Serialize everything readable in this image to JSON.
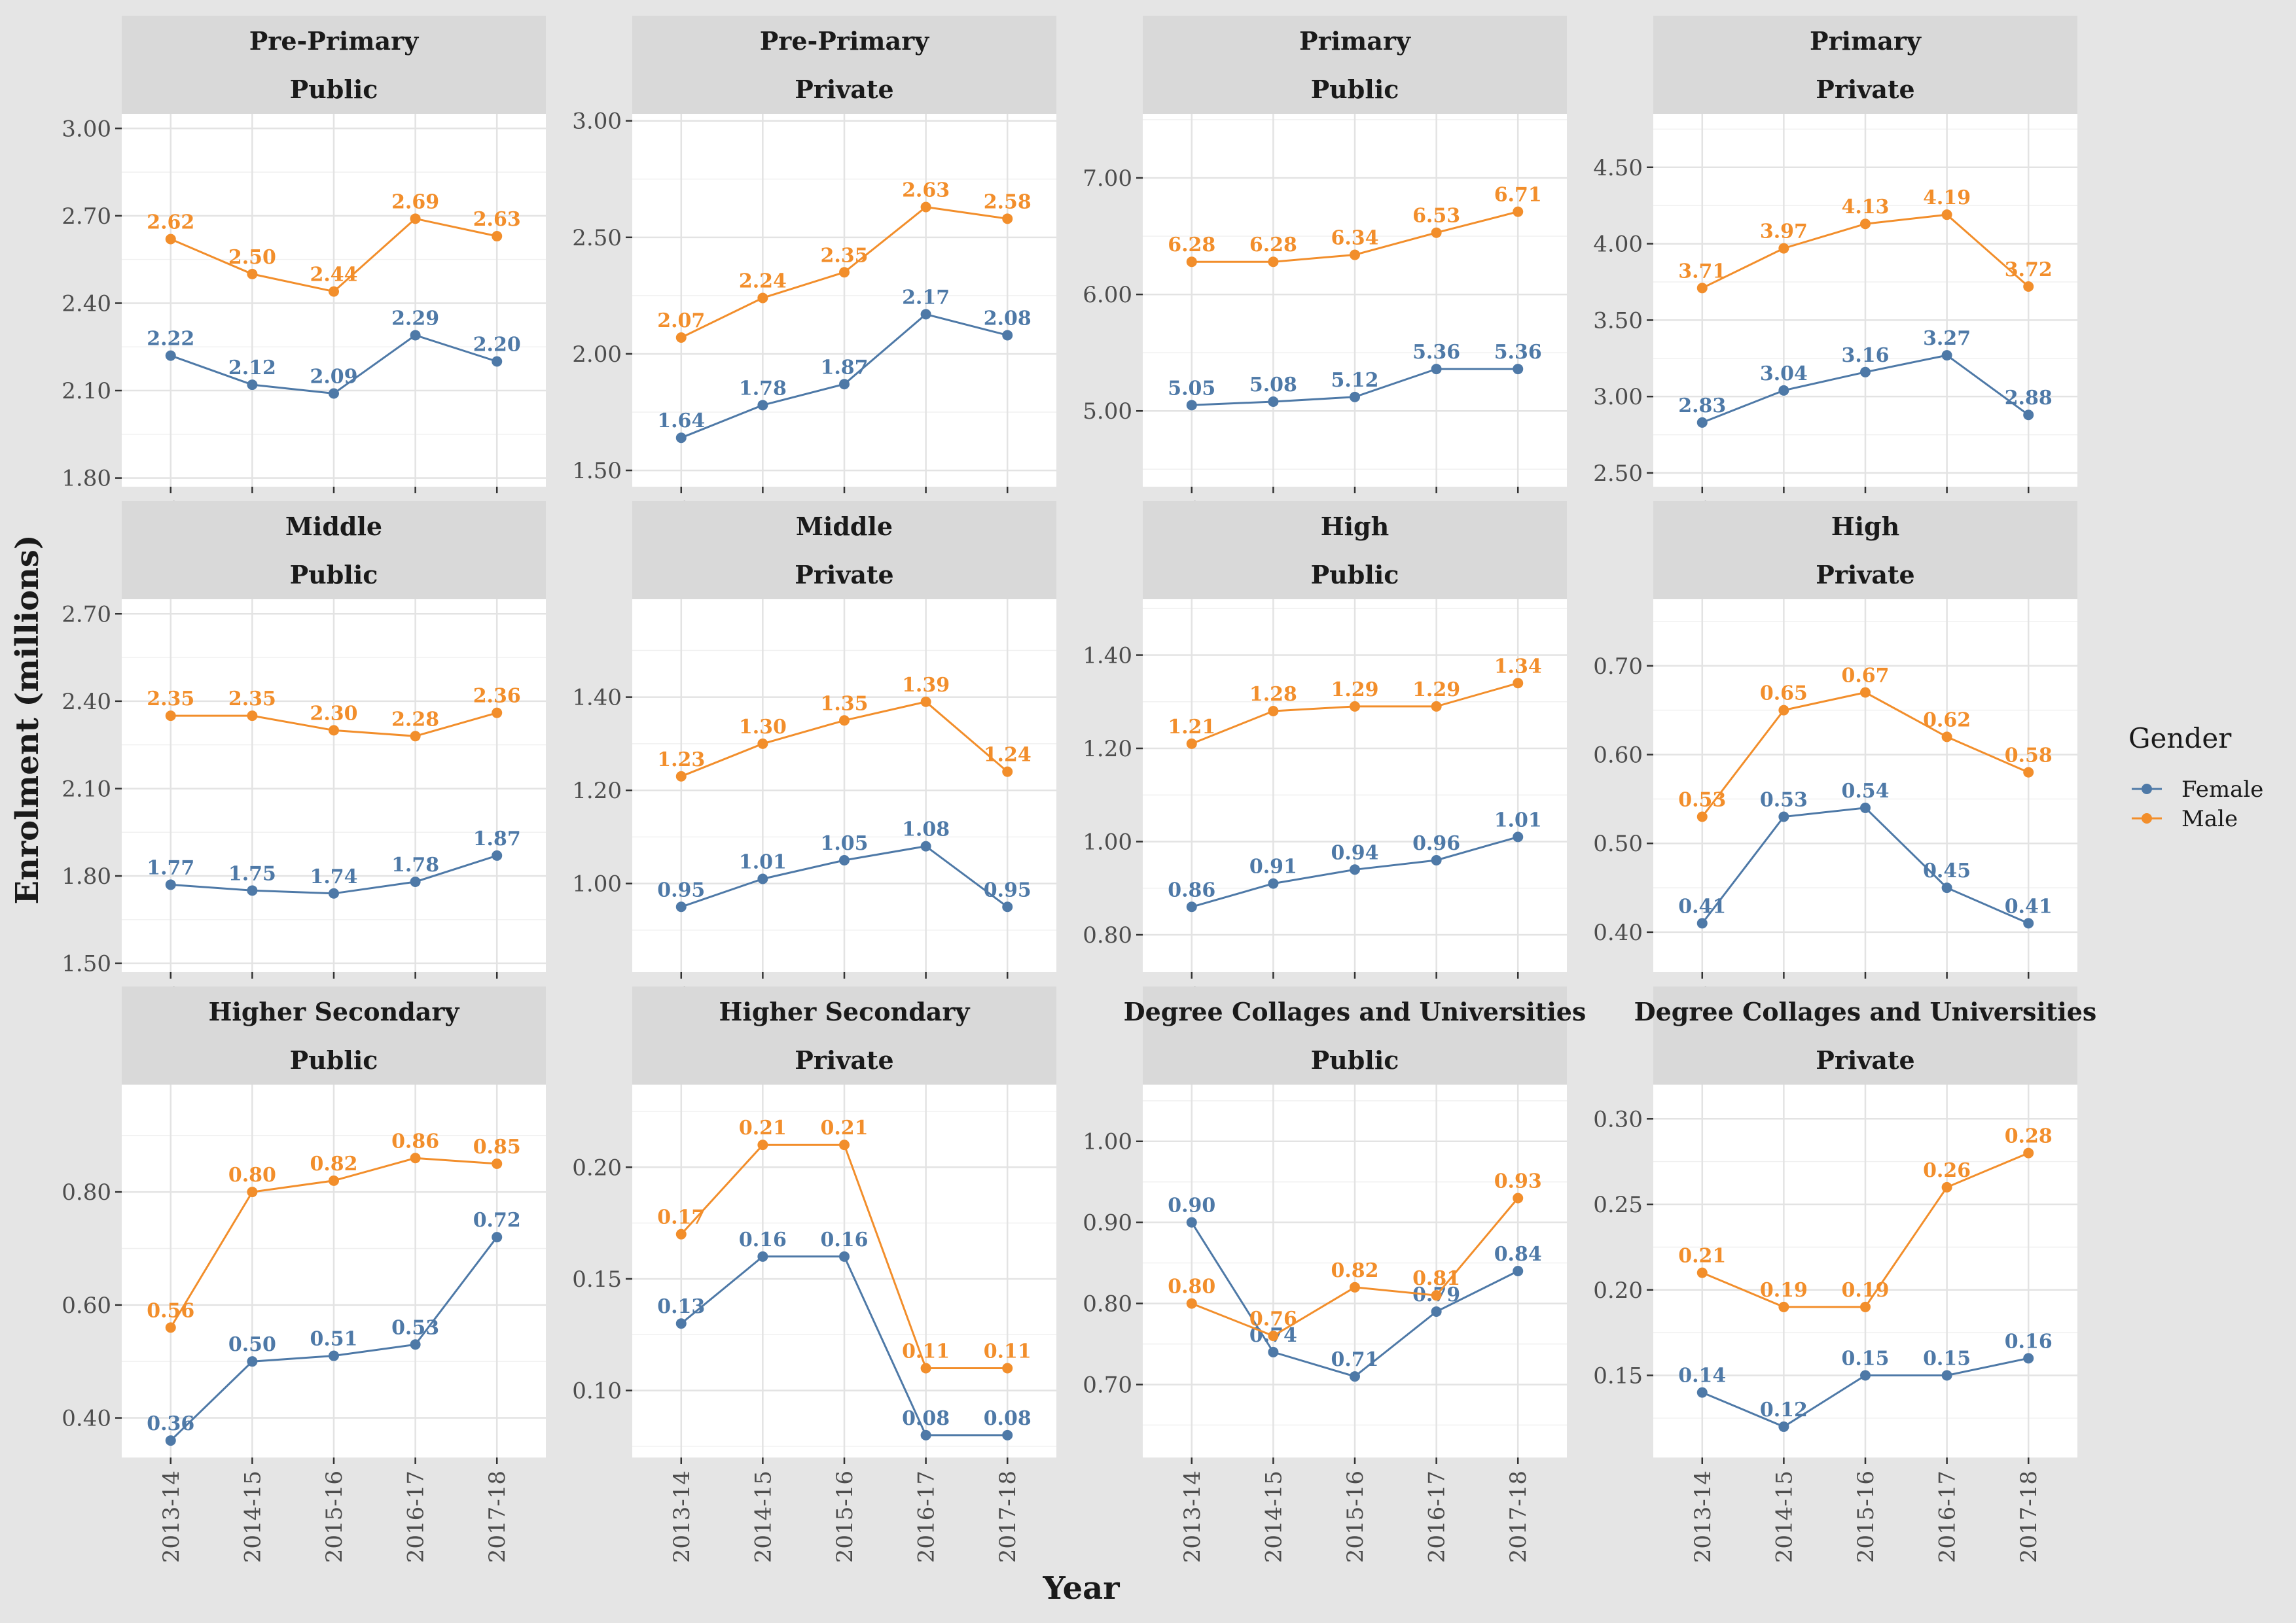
{
  "chart_data": {
    "type": "line",
    "xlabel": "Year",
    "ylabel": "Enrolment (millions)",
    "x": [
      "2013-14",
      "2014-15",
      "2015-16",
      "2016-17",
      "2017-18"
    ],
    "legend": {
      "title": "Gender",
      "placement": "right",
      "entries": [
        {
          "name": "Female",
          "color": "#4e79a7"
        },
        {
          "name": "Male",
          "color": "#f28e2b"
        }
      ]
    },
    "panels": [
      {
        "level": "Pre-Primary",
        "sector": "Public",
        "ylim": [
          1.77,
          3.05
        ],
        "yticks": [
          "1.80",
          "2.10",
          "2.40",
          "2.70",
          "3.00"
        ],
        "series": [
          {
            "name": "Female",
            "values": [
              2.22,
              2.12,
              2.09,
              2.29,
              2.2
            ],
            "labels": [
              "2.22",
              "2.12",
              "2.09",
              "2.29",
              "2.20"
            ]
          },
          {
            "name": "Male",
            "values": [
              2.62,
              2.5,
              2.44,
              2.69,
              2.63
            ],
            "labels": [
              "2.62",
              "2.50",
              "2.44",
              "2.69",
              "2.63"
            ]
          }
        ]
      },
      {
        "level": "Pre-Primary",
        "sector": "Private",
        "ylim": [
          1.43,
          3.03
        ],
        "yticks": [
          "1.50",
          "2.00",
          "2.50",
          "3.00"
        ],
        "series": [
          {
            "name": "Female",
            "values": [
              1.64,
              1.78,
              1.87,
              2.17,
              2.08
            ],
            "labels": [
              "1.64",
              "1.78",
              "1.87",
              "2.17",
              "2.08"
            ]
          },
          {
            "name": "Male",
            "values": [
              2.07,
              2.24,
              2.35,
              2.63,
              2.58
            ],
            "labels": [
              "2.07",
              "2.24",
              "2.35",
              "2.63",
              "2.58"
            ]
          }
        ]
      },
      {
        "level": "Primary",
        "sector": "Public",
        "ylim": [
          4.35,
          7.55
        ],
        "yticks": [
          "5.00",
          "6.00",
          "7.00"
        ],
        "series": [
          {
            "name": "Female",
            "values": [
              5.05,
              5.08,
              5.12,
              5.36,
              5.36
            ],
            "labels": [
              "5.05",
              "5.08",
              "5.12",
              "5.36",
              "5.36"
            ]
          },
          {
            "name": "Male",
            "values": [
              6.28,
              6.28,
              6.34,
              6.53,
              6.71
            ],
            "labels": [
              "6.28",
              "6.28",
              "6.34",
              "6.53",
              "6.71"
            ]
          }
        ]
      },
      {
        "level": "Primary",
        "sector": "Private",
        "ylim": [
          2.41,
          4.85
        ],
        "yticks": [
          "2.50",
          "3.00",
          "3.50",
          "4.00",
          "4.50"
        ],
        "series": [
          {
            "name": "Female",
            "values": [
              2.83,
              3.04,
              3.16,
              3.27,
              2.88
            ],
            "labels": [
              "2.83",
              "3.04",
              "3.16",
              "3.27",
              "2.88"
            ]
          },
          {
            "name": "Male",
            "values": [
              3.71,
              3.97,
              4.13,
              4.19,
              3.72
            ],
            "labels": [
              "3.71",
              "3.97",
              "4.13",
              "4.19",
              "3.72"
            ]
          }
        ]
      },
      {
        "level": "Middle",
        "sector": "Public",
        "ylim": [
          1.47,
          2.75
        ],
        "yticks": [
          "1.50",
          "1.80",
          "2.10",
          "2.40",
          "2.70"
        ],
        "series": [
          {
            "name": "Female",
            "values": [
              1.77,
              1.75,
              1.74,
              1.78,
              1.87
            ],
            "labels": [
              "1.77",
              "1.75",
              "1.74",
              "1.78",
              "1.87"
            ]
          },
          {
            "name": "Male",
            "values": [
              2.35,
              2.35,
              2.3,
              2.28,
              2.36
            ],
            "labels": [
              "2.35",
              "2.35",
              "2.30",
              "2.28",
              "2.36"
            ]
          }
        ]
      },
      {
        "level": "Middle",
        "sector": "Private",
        "ylim": [
          0.81,
          1.61
        ],
        "yticks": [
          "1.00",
          "1.20",
          "1.40"
        ],
        "series": [
          {
            "name": "Female",
            "values": [
              0.95,
              1.01,
              1.05,
              1.08,
              0.95
            ],
            "labels": [
              "0.95",
              "1.01",
              "1.05",
              "1.08",
              "0.95"
            ]
          },
          {
            "name": "Male",
            "values": [
              1.23,
              1.3,
              1.35,
              1.39,
              1.24
            ],
            "labels": [
              "1.23",
              "1.30",
              "1.35",
              "1.39",
              "1.24"
            ]
          }
        ]
      },
      {
        "level": "High",
        "sector": "Public",
        "ylim": [
          0.72,
          1.52
        ],
        "yticks": [
          "0.80",
          "1.00",
          "1.20",
          "1.40"
        ],
        "series": [
          {
            "name": "Female",
            "values": [
              0.86,
              0.91,
              0.94,
              0.96,
              1.01
            ],
            "labels": [
              "0.86",
              "0.91",
              "0.94",
              "0.96",
              "1.01"
            ]
          },
          {
            "name": "Male",
            "values": [
              1.21,
              1.28,
              1.29,
              1.29,
              1.34
            ],
            "labels": [
              "1.21",
              "1.28",
              "1.29",
              "1.29",
              "1.34"
            ]
          }
        ]
      },
      {
        "level": "High",
        "sector": "Private",
        "ylim": [
          0.355,
          0.775
        ],
        "yticks": [
          "0.40",
          "0.50",
          "0.60",
          "0.70"
        ],
        "series": [
          {
            "name": "Female",
            "values": [
              0.41,
              0.53,
              0.54,
              0.45,
              0.41
            ],
            "labels": [
              "0.41",
              "0.53",
              "0.54",
              "0.45",
              "0.41"
            ]
          },
          {
            "name": "Male",
            "values": [
              0.53,
              0.65,
              0.67,
              0.62,
              0.58
            ],
            "labels": [
              "0.53",
              "0.65",
              "0.67",
              "0.62",
              "0.58"
            ]
          }
        ]
      },
      {
        "level": "Higher Secondary",
        "sector": "Public",
        "ylim": [
          0.33,
          0.99
        ],
        "yticks": [
          "0.40",
          "0.60",
          "0.80"
        ],
        "series": [
          {
            "name": "Female",
            "values": [
              0.36,
              0.5,
              0.51,
              0.53,
              0.72
            ],
            "labels": [
              "0.36",
              "0.50",
              "0.51",
              "0.53",
              "0.72"
            ]
          },
          {
            "name": "Male",
            "values": [
              0.56,
              0.8,
              0.82,
              0.86,
              0.85
            ],
            "labels": [
              "0.56",
              "0.80",
              "0.82",
              "0.86",
              "0.85"
            ]
          }
        ]
      },
      {
        "level": "Higher Secondary",
        "sector": "Private",
        "ylim": [
          0.07,
          0.237
        ],
        "yticks": [
          "0.10",
          "0.15",
          "0.20"
        ],
        "series": [
          {
            "name": "Female",
            "values": [
              0.13,
              0.16,
              0.16,
              0.08,
              0.08
            ],
            "labels": [
              "0.13",
              "0.16",
              "0.16",
              "0.08",
              "0.08"
            ]
          },
          {
            "name": "Male",
            "values": [
              0.17,
              0.21,
              0.21,
              0.11,
              0.11
            ],
            "labels": [
              "0.17",
              "0.21",
              "0.21",
              "0.11",
              "0.11"
            ]
          }
        ]
      },
      {
        "level": "Degree Collages and Universities",
        "sector": "Public",
        "ylim": [
          0.61,
          1.07
        ],
        "yticks": [
          "0.70",
          "0.80",
          "0.90",
          "1.00"
        ],
        "series": [
          {
            "name": "Female",
            "values": [
              0.9,
              0.74,
              0.71,
              0.79,
              0.84
            ],
            "labels": [
              "0.90",
              "0.74",
              "0.71",
              "0.79",
              "0.84"
            ]
          },
          {
            "name": "Male",
            "values": [
              0.8,
              0.76,
              0.82,
              0.81,
              0.93
            ],
            "labels": [
              "0.80",
              "0.76",
              "0.82",
              "0.81",
              "0.93"
            ]
          }
        ]
      },
      {
        "level": "Degree Collages and Universities",
        "sector": "Private",
        "ylim": [
          0.102,
          0.32
        ],
        "yticks": [
          "0.15",
          "0.20",
          "0.25",
          "0.30"
        ],
        "series": [
          {
            "name": "Female",
            "values": [
              0.14,
              0.12,
              0.15,
              0.15,
              0.16
            ],
            "labels": [
              "0.14",
              "0.12",
              "0.15",
              "0.15",
              "0.16"
            ]
          },
          {
            "name": "Male",
            "values": [
              0.21,
              0.19,
              0.19,
              0.26,
              0.28
            ],
            "labels": [
              "0.21",
              "0.19",
              "0.19",
              "0.26",
              "0.28"
            ]
          }
        ]
      }
    ]
  }
}
